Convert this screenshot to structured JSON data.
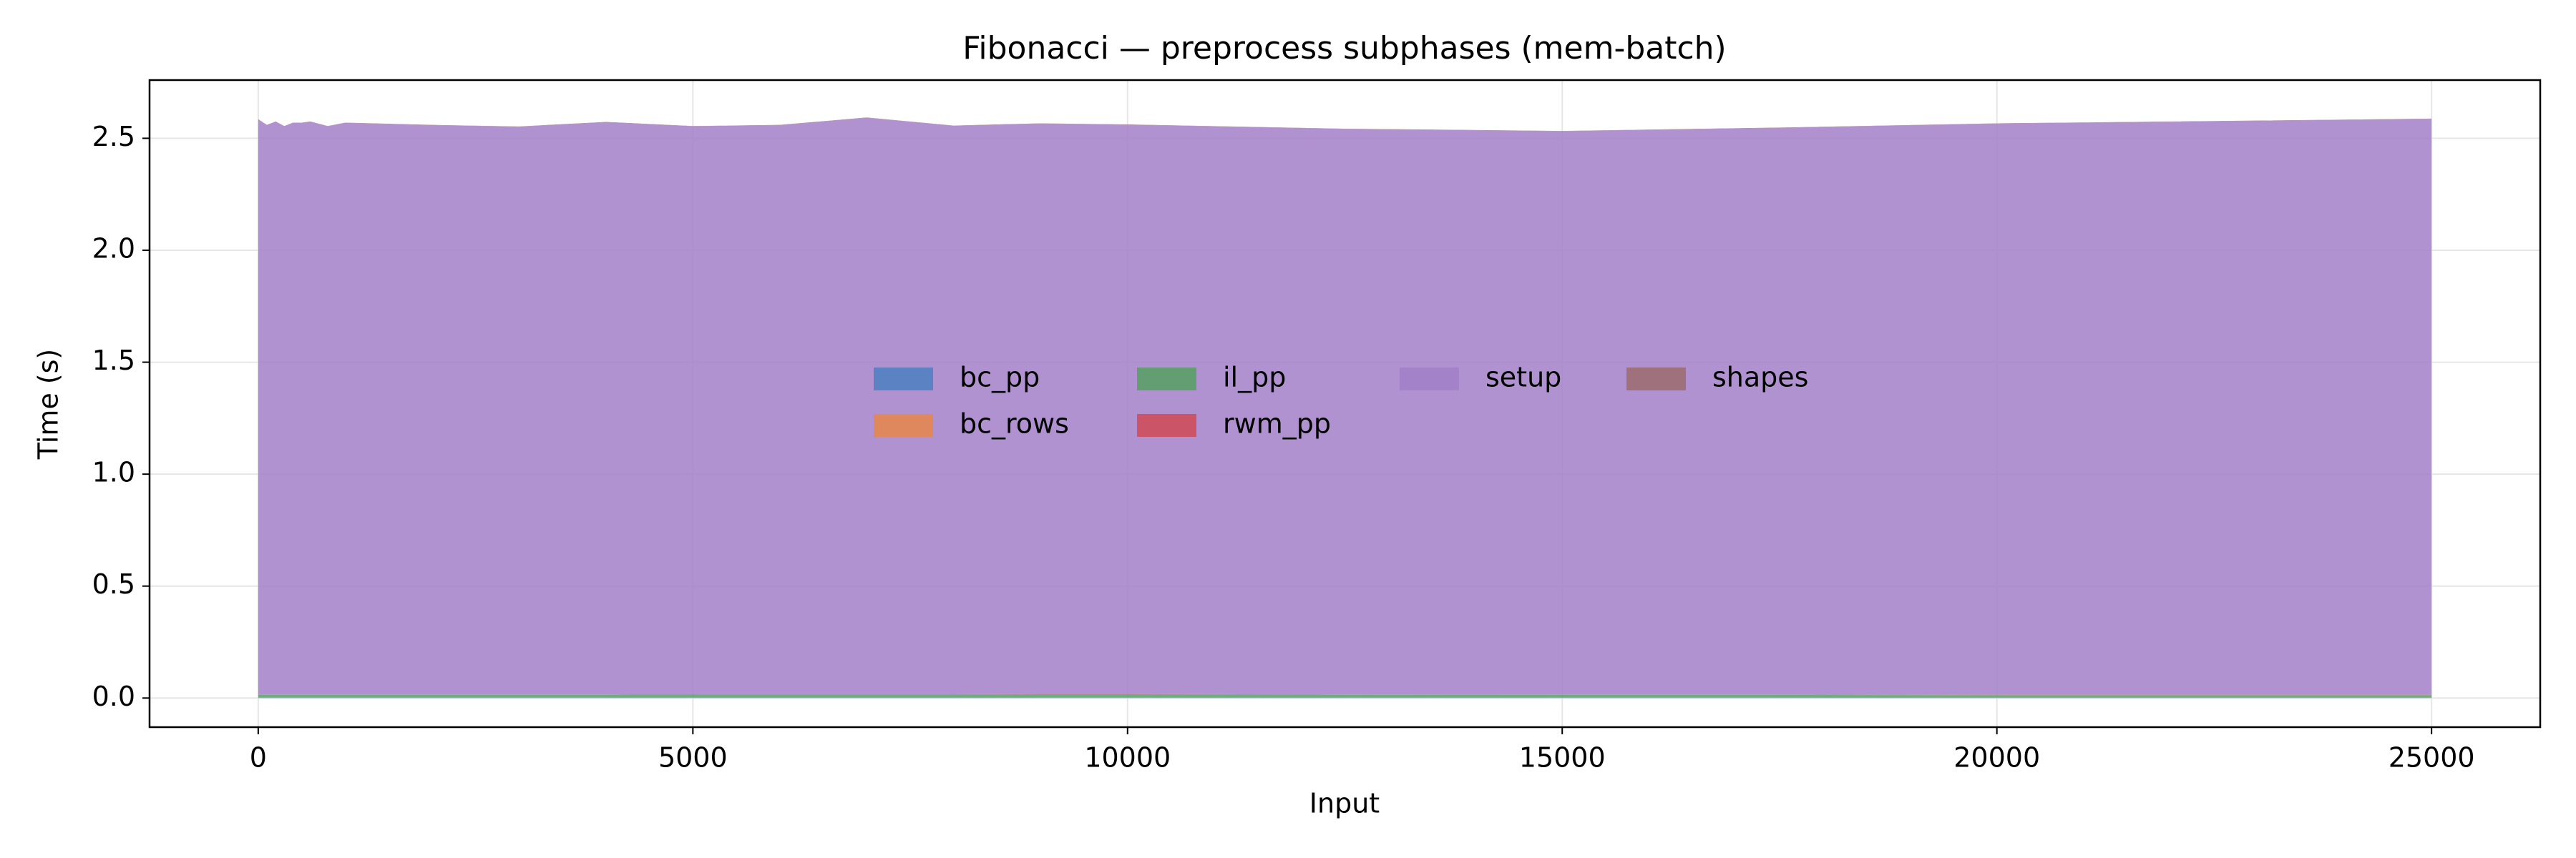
{
  "chart_data": {
    "type": "stacked_area",
    "title": "Fibonacci — preprocess subphases (mem-batch)",
    "x_label": "Input",
    "y_label": "Time (s)",
    "x": [
      0,
      100,
      200,
      300,
      400,
      500,
      600,
      800,
      1000,
      2000,
      3000,
      4000,
      5000,
      6000,
      7000,
      8000,
      9000,
      10000,
      12500,
      15000,
      17500,
      20000,
      22500,
      25000
    ],
    "series": [
      {
        "name": "bc_pp",
        "color": "#4c7fc0",
        "values": [
          0.002,
          0.002,
          0.002,
          0.002,
          0.002,
          0.002,
          0.002,
          0.002,
          0.002,
          0.002,
          0.002,
          0.002,
          0.002,
          0.002,
          0.002,
          0.002,
          0.002,
          0.002,
          0.002,
          0.002,
          0.002,
          0.002,
          0.002,
          0.002
        ]
      },
      {
        "name": "bc_rows",
        "color": "#e8864a",
        "values": [
          0.001,
          0.001,
          0.001,
          0.001,
          0.001,
          0.001,
          0.001,
          0.001,
          0.001,
          0.001,
          0.001,
          0.001,
          0.001,
          0.001,
          0.001,
          0.001,
          0.001,
          0.001,
          0.001,
          0.001,
          0.001,
          0.001,
          0.001,
          0.001
        ]
      },
      {
        "name": "il_pp",
        "color": "#55a060",
        "values": [
          0.012,
          0.012,
          0.012,
          0.012,
          0.012,
          0.012,
          0.012,
          0.012,
          0.012,
          0.012,
          0.012,
          0.012,
          0.013,
          0.013,
          0.013,
          0.013,
          0.014,
          0.014,
          0.012,
          0.011,
          0.011,
          0.01,
          0.01,
          0.01
        ]
      },
      {
        "name": "rwm_pp",
        "color": "#d04a55",
        "values": [
          0.001,
          0.001,
          0.001,
          0.001,
          0.001,
          0.001,
          0.001,
          0.001,
          0.001,
          0.001,
          0.001,
          0.001,
          0.001,
          0.001,
          0.001,
          0.001,
          0.001,
          0.001,
          0.001,
          0.001,
          0.001,
          0.001,
          0.001,
          0.001
        ]
      },
      {
        "name": "setup",
        "color": "#a27fc8",
        "values": [
          2.568,
          2.543,
          2.558,
          2.538,
          2.553,
          2.553,
          2.558,
          2.538,
          2.553,
          2.543,
          2.536,
          2.556,
          2.537,
          2.542,
          2.575,
          2.539,
          2.548,
          2.543,
          2.526,
          2.517,
          2.532,
          2.552,
          2.562,
          2.573
        ]
      },
      {
        "name": "shapes",
        "color": "#9c6b6e",
        "values": [
          0.001,
          0.001,
          0.001,
          0.001,
          0.001,
          0.001,
          0.001,
          0.001,
          0.001,
          0.001,
          0.001,
          0.001,
          0.001,
          0.001,
          0.001,
          0.001,
          0.001,
          0.001,
          0.001,
          0.001,
          0.001,
          0.001,
          0.001,
          0.001
        ]
      }
    ],
    "xlim": [
      -1250,
      26250
    ],
    "ylim": [
      -0.13,
      2.76
    ],
    "xticks": [
      0,
      5000,
      10000,
      15000,
      20000,
      25000
    ],
    "yticks": [
      {
        "value": 0,
        "label": "0.0"
      },
      0.5,
      {
        "value": 1,
        "label": "1.0"
      },
      1.5,
      {
        "value": 2,
        "label": "2.0"
      },
      2.5
    ],
    "grid": true,
    "legend": "center",
    "legend_columns": 4
  }
}
